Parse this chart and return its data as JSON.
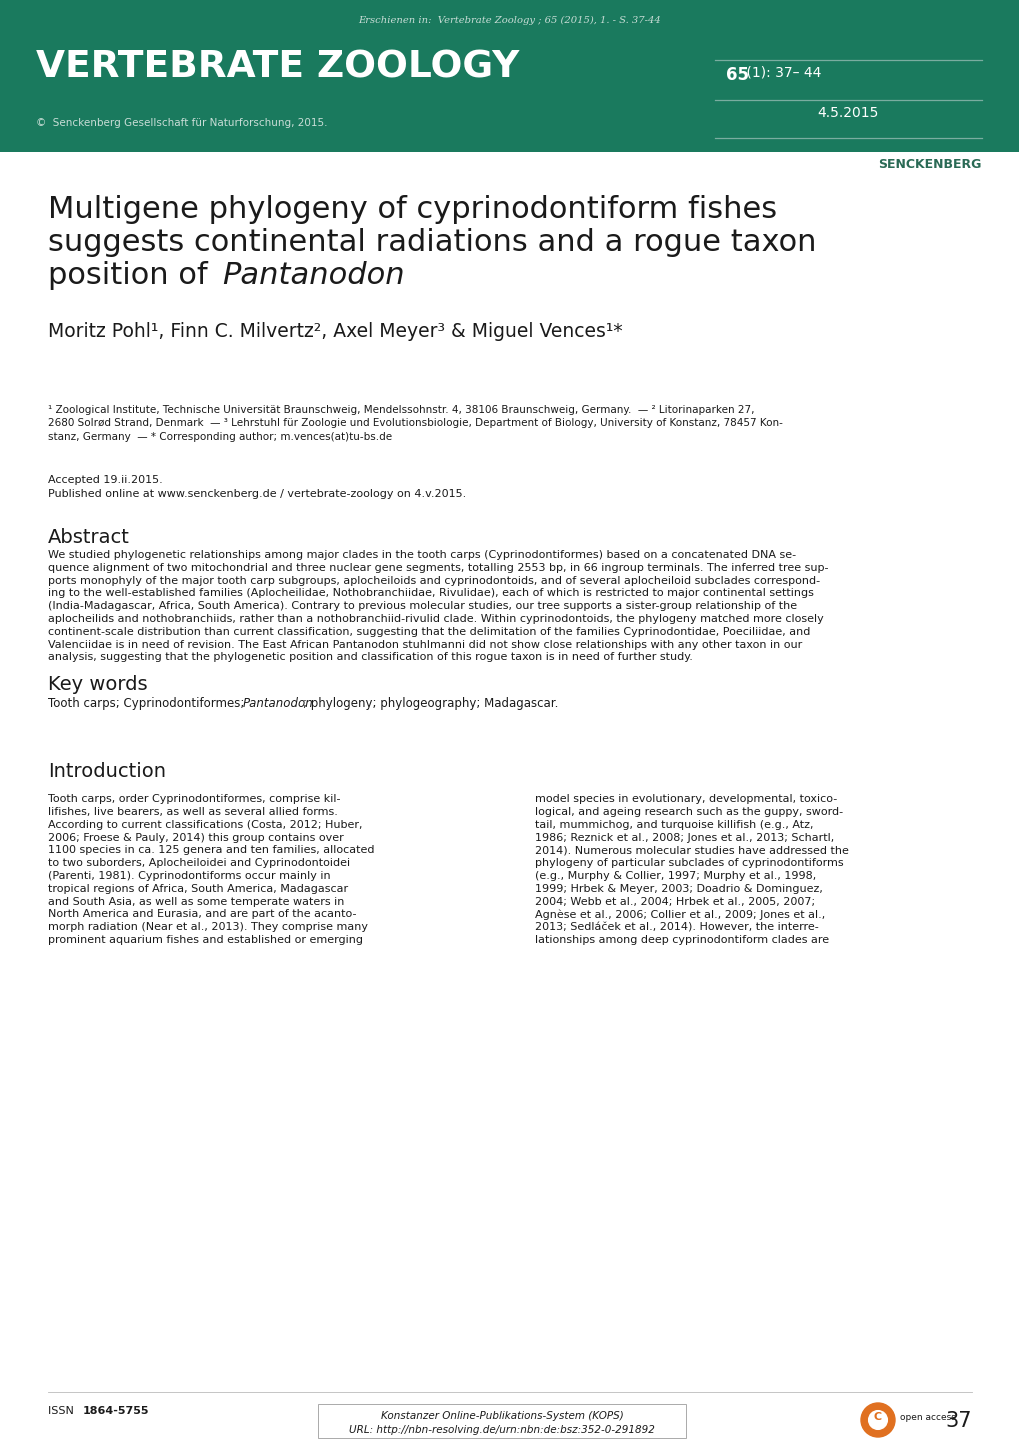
{
  "header_bg_color": "#1a7a5e",
  "header_top_text": "Erschienen in:  Vertebrate Zoology ; 65 (2015), 1. - S. 37-44",
  "journal_title": "VERTEBRATE ZOOLOGY",
  "copyright_text": "©  Senckenberg Gesellschaft für Naturforschung, 2015.",
  "volume_bold": "65",
  "volume_rest": " (1): 37– 44",
  "date_text": "4.5.2015",
  "senckenberg_text": "SENCKENBERG",
  "paper_title_line1": "Multigene phylogeny of cyprinodontiform fishes",
  "paper_title_line2": "suggests continental radiations and a rogue taxon",
  "paper_title_line3_pre": "position of ",
  "paper_title_line3_italic": "Pantanodon",
  "authors_line": "Moritz Pohl¹, Finn C. Milvertz², Axel Meyer³ & Miguel Vences¹*",
  "affiliation1": "¹ Zoological Institute, Technische Universität Braunschweig, Mendelssohnstr. 4, 38106 Braunschweig, Germany.  — ² Litorinaparken 27,",
  "affiliation2": "2680 Solrød Strand, Denmark  — ³ Lehrstuhl für Zoologie und Evolutionsbiologie, Department of Biology, University of Konstanz, 78457 Kon-",
  "affiliation3": "stanz, Germany  — * Corresponding author; m.vences(at)tu-bs.de",
  "accepted_text": "Accepted 19.ii.2015.",
  "published_text": "Published online at www.senckenberg.de / vertebrate-zoology on 4.v.2015.",
  "abstract_title": "Abstract",
  "abstract_lines": [
    "We studied phylogenetic relationships among major clades in the tooth carps (Cyprinodontiformes) based on a concatenated DNA se-",
    "quence alignment of two mitochondrial and three nuclear gene segments, totalling 2553 bp, in 66 ingroup terminals. The inferred tree sup-",
    "ports monophyly of the major tooth carp subgroups, aplocheiloids and cyprinodontoids, and of several aplocheiloid subclades correspond-",
    "ing to the well-established families (Aplocheilidae, Nothobranchiidae, Rivulidae), each of which is restricted to major continental settings",
    "(India-Madagascar, Africa, South America). Contrary to previous molecular studies, our tree supports a sister-group relationship of the",
    "aplocheilids and nothobranchiids, rather than a nothobranchiid-rivulid clade. Within cyprinodontoids, the phylogeny matched more closely",
    "continent-scale distribution than current classification, suggesting that the delimitation of the families Cyprinodontidae, Poeciliidae, and",
    "Valenciidae is in need of revision. The East African Pantanodon stuhlmanni did not show close relationships with any other taxon in our",
    "analysis, suggesting that the phylogenetic position and classification of this rogue taxon is in need of further study."
  ],
  "keywords_title": "Key words",
  "keywords_pre": "Tooth carps; Cyprinodontiformes; ",
  "keywords_italic": "Pantanodon",
  "keywords_post": "; phylogeny; phylogeography; Madagascar.",
  "intro_title": "Introduction",
  "intro_col1_lines": [
    "Tooth carps, order Cyprinodontiformes, comprise kil-",
    "lifishes, live bearers, as well as several allied forms.",
    "According to current classifications (Costa, 2012; Huber,",
    "2006; Froese & Pauly, 2014) this group contains over",
    "1100 species in ca. 125 genera and ten families, allocated",
    "to two suborders, Aplocheiloidei and Cyprinodontoidei",
    "(Parenti, 1981). Cyprinodontiforms occur mainly in",
    "tropical regions of Africa, South America, Madagascar",
    "and South Asia, as well as some temperate waters in",
    "North America and Eurasia, and are part of the acanto-",
    "morph radiation (Near et al., 2013). They comprise many",
    "prominent aquarium fishes and established or emerging"
  ],
  "intro_col2_lines": [
    "model species in evolutionary, developmental, toxico-",
    "logical, and ageing research such as the guppy, sword-",
    "tail, mummichog, and turquoise killifish (e.g., Atz,",
    "1986; Reznick et al., 2008; Jones et al., 2013; Schartl,",
    "2014). Numerous molecular studies have addressed the",
    "phylogeny of particular subclades of cyprinodontiforms",
    "(e.g., Murphy & Collier, 1997; Murphy et al., 1998,",
    "1999; Hrbek & Meyer, 2003; Doadrio & Dominguez,",
    "2004; Webb et al., 2004; Hrbek et al., 2005, 2007;",
    "Agnèse et al., 2006; Collier et al., 2009; Jones et al.,",
    "2013; Sedláček et al., 2014). However, the interre-",
    "lationships among deep cyprinodontiform clades are"
  ],
  "footer_issn_label": "ISSN",
  "footer_issn_num": "1864-5755",
  "footer_center_line1": "Konstanzer Online-Publikations-System (KOPS)",
  "footer_center_line2": "URL: http://nbn-resolving.de/urn:nbn:de:bsz:352-0-291892",
  "footer_page": "37",
  "bg_color": "#ffffff",
  "text_color": "#1a1a1a",
  "green_color": "#1a7a5e",
  "green_light": "#c8ddd6",
  "green_line": "#7aada0"
}
